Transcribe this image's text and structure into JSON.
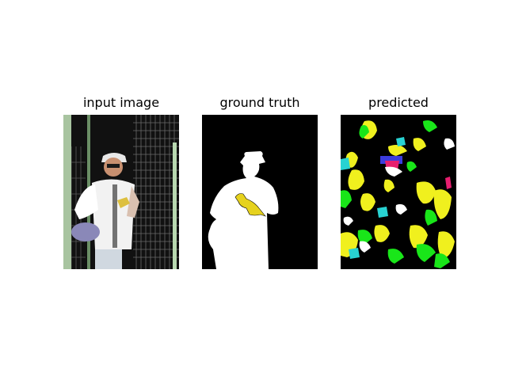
{
  "panels": [
    {
      "title": "input image",
      "content": "photo"
    },
    {
      "title": "ground truth",
      "content": "segmentation-mask"
    },
    {
      "title": "predicted",
      "content": "segmentation-mask"
    }
  ],
  "colors": {
    "background": "#ffffff",
    "mask_background": "#000000",
    "person_class": "#ffffff",
    "bird_class": "#e6d21e",
    "pred_green": "#19e619",
    "pred_yellow": "#f0f01e",
    "pred_cyan": "#28d2d2",
    "pred_magenta": "#e61e6e",
    "pred_blue": "#3c3cdc"
  }
}
